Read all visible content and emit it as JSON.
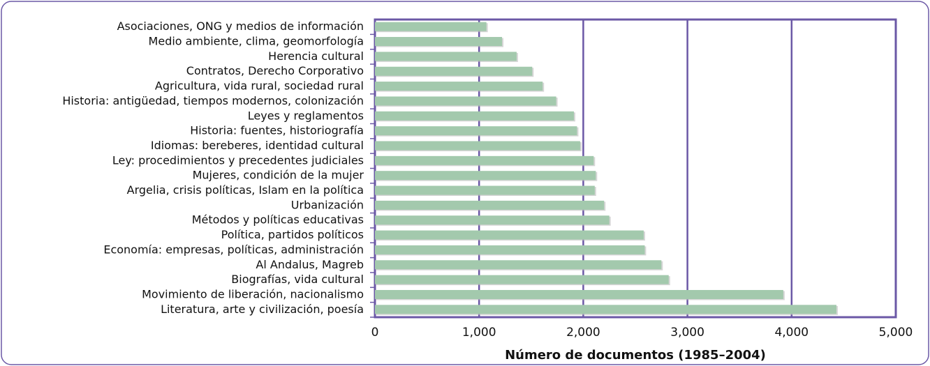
{
  "chart_data": {
    "type": "bar",
    "orientation": "horizontal",
    "x_label": "Número de documentos (1985–2004)",
    "categories": [
      "Asociaciones, ONG y medios de información",
      "Medio ambiente, clima, geomorfología",
      "Herencia cultural",
      "Contratos, Derecho Corporativo",
      "Agricultura, vida rural, sociedad rural",
      "Historia: antigüedad, tiempos modernos, colonización",
      "Leyes y reglamentos",
      "Historia: fuentes, historiografía",
      "Idiomas: bereberes, identidad cultural",
      "Ley: procedimientos y precedentes judiciales",
      "Mujeres, condición de la mujer",
      "Argelia, crisis políticas, Islam en la política",
      "Urbanización",
      "Métodos y políticas educativas",
      "Política, partidos políticos",
      "Economía: empresas, políticas, administración",
      "Al Andalus, Magreb",
      "Biografías, vida cultural",
      "Movimiento de liberación, nacionalismo",
      "Literatura, arte y civilización, poesía"
    ],
    "values": [
      1070,
      1220,
      1360,
      1510,
      1610,
      1740,
      1910,
      1940,
      1970,
      2100,
      2120,
      2110,
      2200,
      2250,
      2580,
      2590,
      2750,
      2820,
      3920,
      4430
    ],
    "color": "#a3c9ad",
    "xlim": [
      0,
      5000
    ],
    "xticks": [
      0,
      {
        "value": 1000,
        "label": "1,000"
      },
      {
        "value": 2000,
        "label": "2,000"
      },
      {
        "value": 3000,
        "label": "3,000"
      },
      {
        "value": 4000,
        "label": "4,000"
      },
      {
        "value": 5000,
        "label": "5,000"
      }
    ],
    "grid": true
  }
}
